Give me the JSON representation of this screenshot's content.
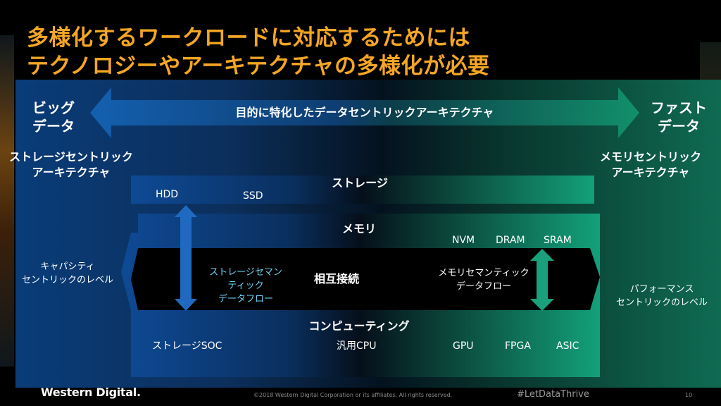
{
  "title": {
    "line1": "多様化するワークロードに対応するためには",
    "line2": "テクノロジーやアーキテクチャの多様化が必要"
  },
  "arrow": {
    "label": "目的に特化したデータセントリックアーキテクチャ",
    "left_end": [
      "ビッグ",
      "データ"
    ],
    "right_end": [
      "ファスト",
      "データ"
    ]
  },
  "left_arch": [
    "ストレージセントリック",
    "アーキテクチャ"
  ],
  "right_arch": [
    "メモリセントリック",
    "アーキテクチャ"
  ],
  "layers": {
    "storage": {
      "label": "ストレージ",
      "items": [
        "HDD",
        "SSD"
      ]
    },
    "memory": {
      "label": "メモリ",
      "items": [
        "NVM",
        "DRAM",
        "SRAM"
      ]
    },
    "interconnect": {
      "label": "相互接続",
      "left_flow": [
        "ストレージセマン",
        "ティック",
        "データフロー"
      ],
      "right_flow": [
        "メモリセマンティック",
        "データフロー"
      ]
    },
    "computing": {
      "label": "コンピューティング",
      "items": [
        "ストレージSOC",
        "汎用CPU",
        "GPU",
        "FPGA",
        "ASIC"
      ]
    }
  },
  "left_level": [
    "キャパシティ",
    "セントリックのレベル"
  ],
  "right_level": [
    "パフォーマンス",
    "セントリックのレベル"
  ],
  "footer": {
    "logo": "Western Digital.",
    "copyright": "©2018 Western Digital Corporation or its affiliates. All rights reserved.",
    "hashtag": "#LetDataThrive",
    "page": "10"
  },
  "colors": {
    "title": "#f5a623",
    "blue": "#0a3c78",
    "green": "#0f6b52",
    "cyan_text": "#6fd3f5"
  }
}
